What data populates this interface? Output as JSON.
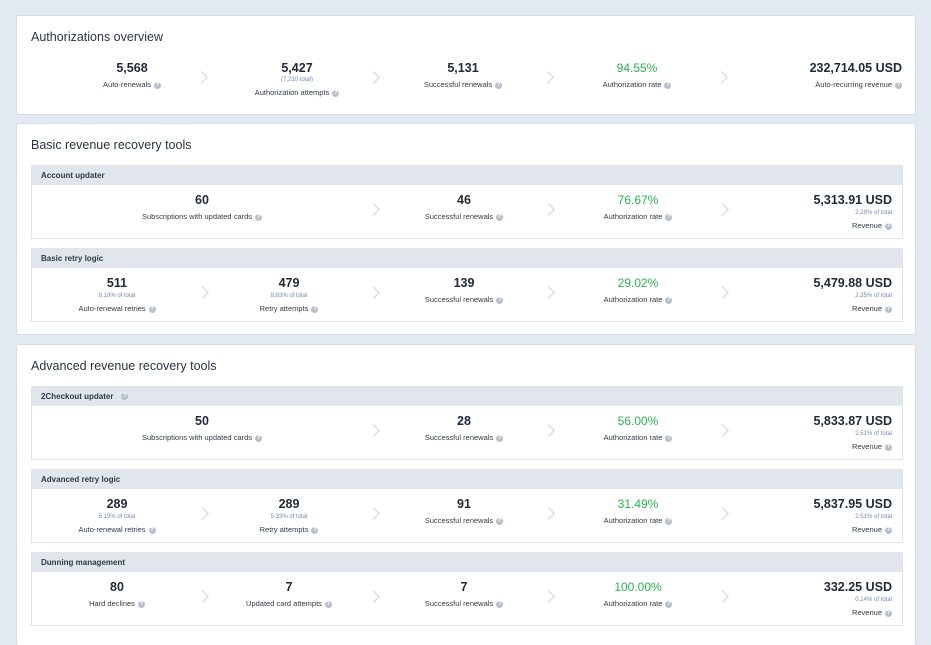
{
  "overview": {
    "title": "Authorizations overview",
    "metrics": [
      {
        "value": "5,568",
        "label": "Auto-renewals"
      },
      {
        "value": "5,427",
        "sub": "(7,210 total)",
        "label": "Authorization attempts"
      },
      {
        "value": "5,131",
        "label": "Successful renewals"
      },
      {
        "value": "94.55%",
        "label": "Authorization rate"
      },
      {
        "value": "232,714.05 USD",
        "label": "Auto-recurring revenue"
      }
    ]
  },
  "basic": {
    "title": "Basic revenue recovery tools",
    "account_updater": {
      "head": "Account updater",
      "m1": {
        "value": "60",
        "label": "Subscriptions with updated cards"
      },
      "m2": {
        "value": "46",
        "label": "Successful renewals"
      },
      "m3": {
        "value": "76.67%",
        "label": "Authorization rate"
      },
      "m4": {
        "value": "5,313.91 USD",
        "sub": "2.28% of total",
        "label": "Revenue"
      }
    },
    "retry": {
      "head": "Basic retry logic",
      "m1": {
        "value": "511",
        "sub": "9.18% of total",
        "label": "Auto-renewal retries"
      },
      "m2": {
        "value": "479",
        "sub": "8.83% of total",
        "label": "Retry attempts"
      },
      "m3": {
        "value": "139",
        "label": "Successful renewals"
      },
      "m4": {
        "value": "29.02%",
        "label": "Authorization rate"
      },
      "m5": {
        "value": "5,479.88 USD",
        "sub": "2.35% of total",
        "label": "Revenue"
      }
    }
  },
  "advanced": {
    "title": "Advanced revenue recovery tools",
    "updater": {
      "head": "2Checkout updater",
      "m1": {
        "value": "50",
        "label": "Subscriptions with updated cards"
      },
      "m2": {
        "value": "28",
        "label": "Successful renewals"
      },
      "m3": {
        "value": "56.00%",
        "label": "Authorization rate"
      },
      "m4": {
        "value": "5,833.87 USD",
        "sub": "2.51% of total",
        "label": "Revenue"
      }
    },
    "retry": {
      "head": "Advanced retry logic",
      "m1": {
        "value": "289",
        "sub": "5.19% of total",
        "label": "Auto-renewal retries"
      },
      "m2": {
        "value": "289",
        "sub": "5.33% of total",
        "label": "Retry attempts"
      },
      "m3": {
        "value": "91",
        "label": "Successful renewals"
      },
      "m4": {
        "value": "31.49%",
        "label": "Authorization rate"
      },
      "m5": {
        "value": "5,837.95 USD",
        "sub": "2.51% of total",
        "label": "Revenue"
      }
    },
    "dunning": {
      "head": "Dunning management",
      "m1": {
        "value": "80",
        "label": "Hard declines"
      },
      "m2": {
        "value": "7",
        "label": "Updated card attempts"
      },
      "m3": {
        "value": "7",
        "label": "Successful renewals"
      },
      "m4": {
        "value": "100.00%",
        "label": "Authorization rate"
      },
      "m5": {
        "value": "332.25 USD",
        "sub": "0.14% of total",
        "label": "Revenue"
      }
    }
  },
  "colors": {
    "accent_green": "#2bb24c",
    "sub_blue": "#6b8bb8",
    "background": "#e3e9f1"
  },
  "icons": {
    "help": "help-circle-icon",
    "separator": "chevron-right-icon"
  }
}
